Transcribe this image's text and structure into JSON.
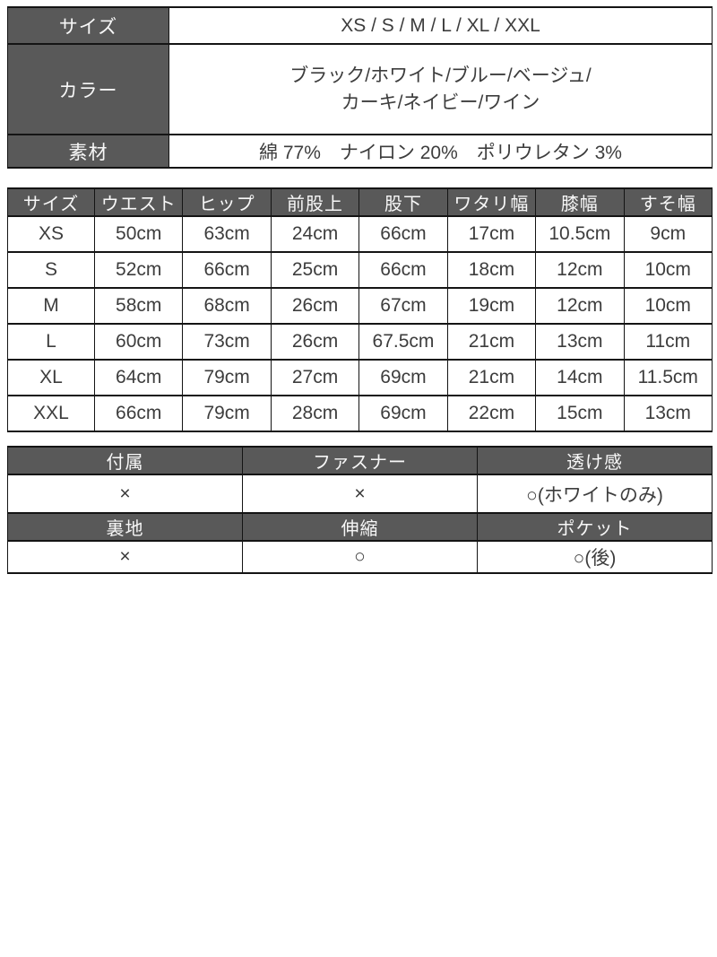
{
  "colors": {
    "header_bg": "#595959",
    "header_text": "#f7f7f7",
    "cell_text": "#3d3d3d",
    "border": "#141414",
    "page_bg": "#ffffff"
  },
  "spec_table": {
    "size_label": "サイズ",
    "size_value": "XS / S / M / L / XL / XXL",
    "color_label": "カラー",
    "color_value": "ブラック/ホワイト/ブルー/ベージュ/\nカーキ/ネイビー/ワイン",
    "fabric_label": "素材",
    "fabric_value": "綿 77%　ナイロン 20%　ポリウレタン 3%"
  },
  "size_table": {
    "columns": [
      "サイズ",
      "ウエスト",
      "ヒップ",
      "前股上",
      "股下",
      "ワタリ幅",
      "膝幅",
      "すそ幅"
    ],
    "rows": [
      [
        "XS",
        "50cm",
        "63cm",
        "24cm",
        "66cm",
        "17cm",
        "10.5cm",
        "9cm"
      ],
      [
        "S",
        "52cm",
        "66cm",
        "25cm",
        "66cm",
        "18cm",
        "12cm",
        "10cm"
      ],
      [
        "M",
        "58cm",
        "68cm",
        "26cm",
        "67cm",
        "19cm",
        "12cm",
        "10cm"
      ],
      [
        "L",
        "60cm",
        "73cm",
        "26cm",
        "67.5cm",
        "21cm",
        "13cm",
        "11cm"
      ],
      [
        "XL",
        "64cm",
        "79cm",
        "27cm",
        "69cm",
        "21cm",
        "14cm",
        "11.5cm"
      ],
      [
        "XXL",
        "66cm",
        "79cm",
        "28cm",
        "69cm",
        "22cm",
        "15cm",
        "13cm"
      ]
    ]
  },
  "detail_table": {
    "header1": [
      "付属",
      "ファスナー",
      "透け感"
    ],
    "row1": [
      "×",
      "×",
      "○(ホワイトのみ)"
    ],
    "header2": [
      "裏地",
      "伸縮",
      "ポケット"
    ],
    "row2": [
      "×",
      "○",
      "○(後)"
    ]
  }
}
